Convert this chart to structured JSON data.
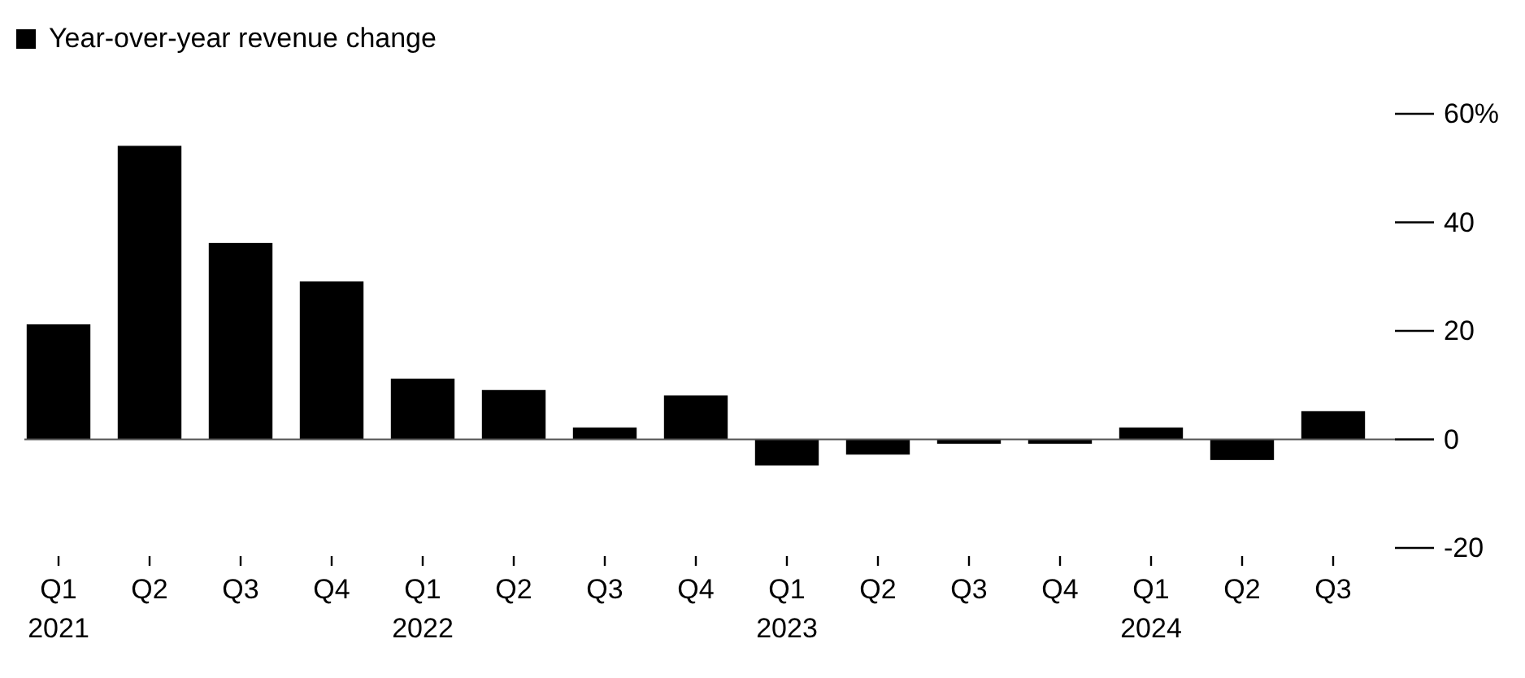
{
  "chart_data": {
    "type": "bar",
    "categories": [
      "Q1\n2021",
      "Q2",
      "Q3",
      "Q4",
      "Q1\n2022",
      "Q2",
      "Q3",
      "Q4",
      "Q1\n2023",
      "Q2",
      "Q3",
      "Q4",
      "Q1\n2024",
      "Q2",
      "Q3"
    ],
    "series": [
      {
        "name": "Year-over-year revenue change",
        "color": "#000000",
        "values": [
          21.2,
          54.1,
          36.2,
          29.1,
          11.2,
          9.1,
          2.2,
          8.1,
          -4.8,
          -2.8,
          -0.8,
          -0.8,
          2.2,
          -3.8,
          5.2
        ]
      }
    ],
    "ylim": [
      -20,
      60
    ],
    "yticks": [
      -20,
      0,
      20,
      40,
      {
        "value": 60,
        "label": "60%"
      }
    ],
    "ref_lines": [
      {
        "axis": "y",
        "value": 0,
        "color": "#555555"
      }
    ],
    "legend": "top left"
  }
}
